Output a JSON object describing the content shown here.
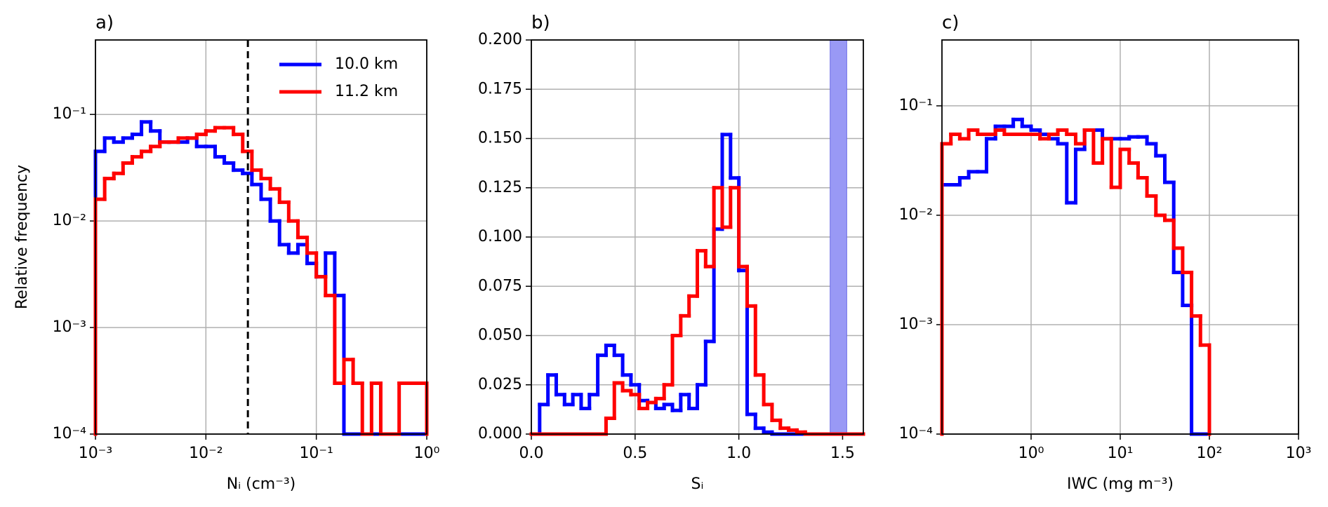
{
  "chart_data": [
    {
      "type": "histogram",
      "panel_label": "a)",
      "xlabel": "Nᵢ (cm⁻³)",
      "ylabel": "Relative frequency",
      "xscale": "log",
      "yscale": "log",
      "grid": true,
      "legend": "upper right",
      "xlim": [
        0.001,
        1
      ],
      "ylim": [
        0.0001,
        0.5
      ],
      "xticks": [
        {
          "value": 0.001,
          "label": "10⁻³"
        },
        {
          "value": 0.01,
          "label": "10⁻²"
        },
        {
          "value": 0.1,
          "label": "10⁻¹"
        },
        {
          "value": 1,
          "label": "10⁰"
        }
      ],
      "yticks": [
        {
          "value": 0.0001,
          "label": "10⁻⁴"
        },
        {
          "value": 0.001,
          "label": "10⁻³"
        },
        {
          "value": 0.01,
          "label": "10⁻²"
        },
        {
          "value": 0.1,
          "label": "10⁻¹"
        }
      ],
      "vline": 0.024,
      "vline_color": "#000000",
      "bins": [
        0.001,
        0.001212,
        0.001468,
        0.001778,
        0.002154,
        0.00261,
        0.003162,
        0.003831,
        0.004642,
        0.005623,
        0.006813,
        0.008254,
        0.01,
        0.01212,
        0.01468,
        0.01778,
        0.02154,
        0.0261,
        0.03162,
        0.03831,
        0.04642,
        0.05623,
        0.06813,
        0.08254,
        0.1,
        0.1212,
        0.1468,
        0.1778,
        0.2154,
        0.261,
        0.3162,
        0.3831,
        0.4642,
        0.5623,
        0.6813,
        0.8254,
        1
      ],
      "series": [
        {
          "name": "10.0 km",
          "color": "#0000ff",
          "values": [
            0.045,
            0.06,
            0.055,
            0.06,
            0.065,
            0.085,
            0.07,
            0.055,
            0.055,
            0.055,
            0.06,
            0.05,
            0.05,
            0.04,
            0.035,
            0.03,
            0.028,
            0.022,
            0.016,
            0.01,
            0.006,
            0.005,
            0.006,
            0.004,
            0.003,
            0.005,
            0.002,
            0,
            0,
            0,
            0,
            0,
            0,
            0,
            0,
            0
          ]
        },
        {
          "name": "11.2 km",
          "color": "#ff0000",
          "values": [
            0.016,
            0.025,
            0.028,
            0.035,
            0.04,
            0.045,
            0.05,
            0.055,
            0.055,
            0.06,
            0.06,
            0.065,
            0.07,
            0.075,
            0.075,
            0.065,
            0.045,
            0.03,
            0.025,
            0.02,
            0.015,
            0.01,
            0.007,
            0.005,
            0.003,
            0.002,
            0.0003,
            0.0005,
            0.0003,
            0,
            0.0003,
            0,
            0,
            0.0003,
            0.0003,
            0.0003
          ]
        }
      ]
    },
    {
      "type": "histogram",
      "panel_label": "b)",
      "xlabel": "Sᵢ",
      "xscale": "linear",
      "yscale": "linear",
      "grid": true,
      "xlim": [
        0,
        1.6
      ],
      "ylim": [
        0,
        0.2
      ],
      "xticks": [
        {
          "value": 0,
          "label": "0.0"
        },
        0.5,
        {
          "value": 1,
          "label": "1.0"
        },
        1.5
      ],
      "yticks": [
        {
          "value": 0,
          "label": "0.000"
        },
        {
          "value": 0.025,
          "label": "0.025"
        },
        {
          "value": 0.05,
          "label": "0.050"
        },
        {
          "value": 0.075,
          "label": "0.075"
        },
        {
          "value": 0.1,
          "label": "0.100"
        },
        {
          "value": 0.125,
          "label": "0.125"
        },
        {
          "value": 0.15,
          "label": "0.150"
        },
        {
          "value": 0.175,
          "label": "0.175"
        },
        {
          "value": 0.2,
          "label": "0.200"
        }
      ],
      "span": [
        1.44,
        1.52
      ],
      "span_color": "#9999f5",
      "bins": [
        0,
        0.04,
        0.08,
        0.12,
        0.16,
        0.2,
        0.24,
        0.28,
        0.32,
        0.36,
        0.4,
        0.44,
        0.48,
        0.52,
        0.56,
        0.6,
        0.64,
        0.68,
        0.72,
        0.76,
        0.8,
        0.84,
        0.88,
        0.92,
        0.96,
        1,
        1.04,
        1.08,
        1.12,
        1.16,
        1.2,
        1.24,
        1.28,
        1.32,
        1.36,
        1.4,
        1.44,
        1.48,
        1.52,
        1.56,
        1.6
      ],
      "series": [
        {
          "color": "#0000ff",
          "values": [
            0,
            0.015,
            0.03,
            0.02,
            0.015,
            0.02,
            0.013,
            0.02,
            0.04,
            0.045,
            0.04,
            0.03,
            0.025,
            0.017,
            0.016,
            0.013,
            0.015,
            0.012,
            0.02,
            0.013,
            0.025,
            0.047,
            0.104,
            0.152,
            0.13,
            0.083,
            0.01,
            0.003,
            0.001,
            0,
            0,
            0,
            0,
            0,
            0,
            0,
            0,
            0,
            0,
            0
          ]
        },
        {
          "color": "#ff0000",
          "values": [
            0,
            0,
            0,
            0,
            0,
            0,
            0,
            0,
            0,
            0.008,
            0.026,
            0.022,
            0.02,
            0.013,
            0.016,
            0.018,
            0.025,
            0.05,
            0.06,
            0.07,
            0.093,
            0.085,
            0.125,
            0.105,
            0.125,
            0.085,
            0.065,
            0.03,
            0.015,
            0.007,
            0.003,
            0.002,
            0.001,
            0,
            0,
            0,
            0,
            0,
            0,
            0
          ]
        }
      ]
    },
    {
      "type": "histogram",
      "panel_label": "c)",
      "xlabel": "IWC (mg m⁻³)",
      "xscale": "log",
      "yscale": "log",
      "grid": true,
      "xlim": [
        0.1,
        1000
      ],
      "ylim": [
        0.0001,
        0.4
      ],
      "xticks": [
        {
          "value": 1,
          "label": "10⁰"
        },
        {
          "value": 10,
          "label": "10¹"
        },
        {
          "value": 100,
          "label": "10²"
        },
        {
          "value": 1000,
          "label": "10³"
        }
      ],
      "yticks": [
        {
          "value": 0.0001,
          "label": "10⁻⁴"
        },
        {
          "value": 0.001,
          "label": "10⁻³"
        },
        {
          "value": 0.01,
          "label": "10⁻²"
        },
        {
          "value": 0.1,
          "label": "10⁻¹"
        }
      ],
      "bins": [
        0.1,
        0.1259,
        0.1585,
        0.1995,
        0.2512,
        0.3162,
        0.3981,
        0.5012,
        0.631,
        0.7943,
        1,
        1.259,
        1.585,
        1.995,
        2.512,
        3.162,
        3.981,
        5.012,
        6.31,
        7.943,
        10,
        12.59,
        15.85,
        19.95,
        25.12,
        31.62,
        39.81,
        50.12,
        63.1,
        79.43,
        100
      ],
      "series": [
        {
          "color": "#0000ff",
          "values": [
            0.019,
            0.019,
            0.022,
            0.025,
            0.025,
            0.05,
            0.065,
            0.065,
            0.075,
            0.065,
            0.06,
            0.055,
            0.05,
            0.045,
            0.013,
            0.04,
            0.06,
            0.06,
            0.05,
            0.05,
            0.05,
            0.052,
            0.052,
            0.045,
            0.035,
            0.02,
            0.003,
            0.0015,
            0,
            0
          ]
        },
        {
          "color": "#ff0000",
          "values": [
            0.045,
            0.055,
            0.05,
            0.06,
            0.055,
            0.055,
            0.06,
            0.055,
            0.055,
            0.055,
            0.055,
            0.05,
            0.055,
            0.06,
            0.055,
            0.045,
            0.06,
            0.03,
            0.05,
            0.018,
            0.04,
            0.03,
            0.022,
            0.015,
            0.01,
            0.009,
            0.005,
            0.003,
            0.0012,
            0.00065
          ]
        }
      ]
    }
  ]
}
